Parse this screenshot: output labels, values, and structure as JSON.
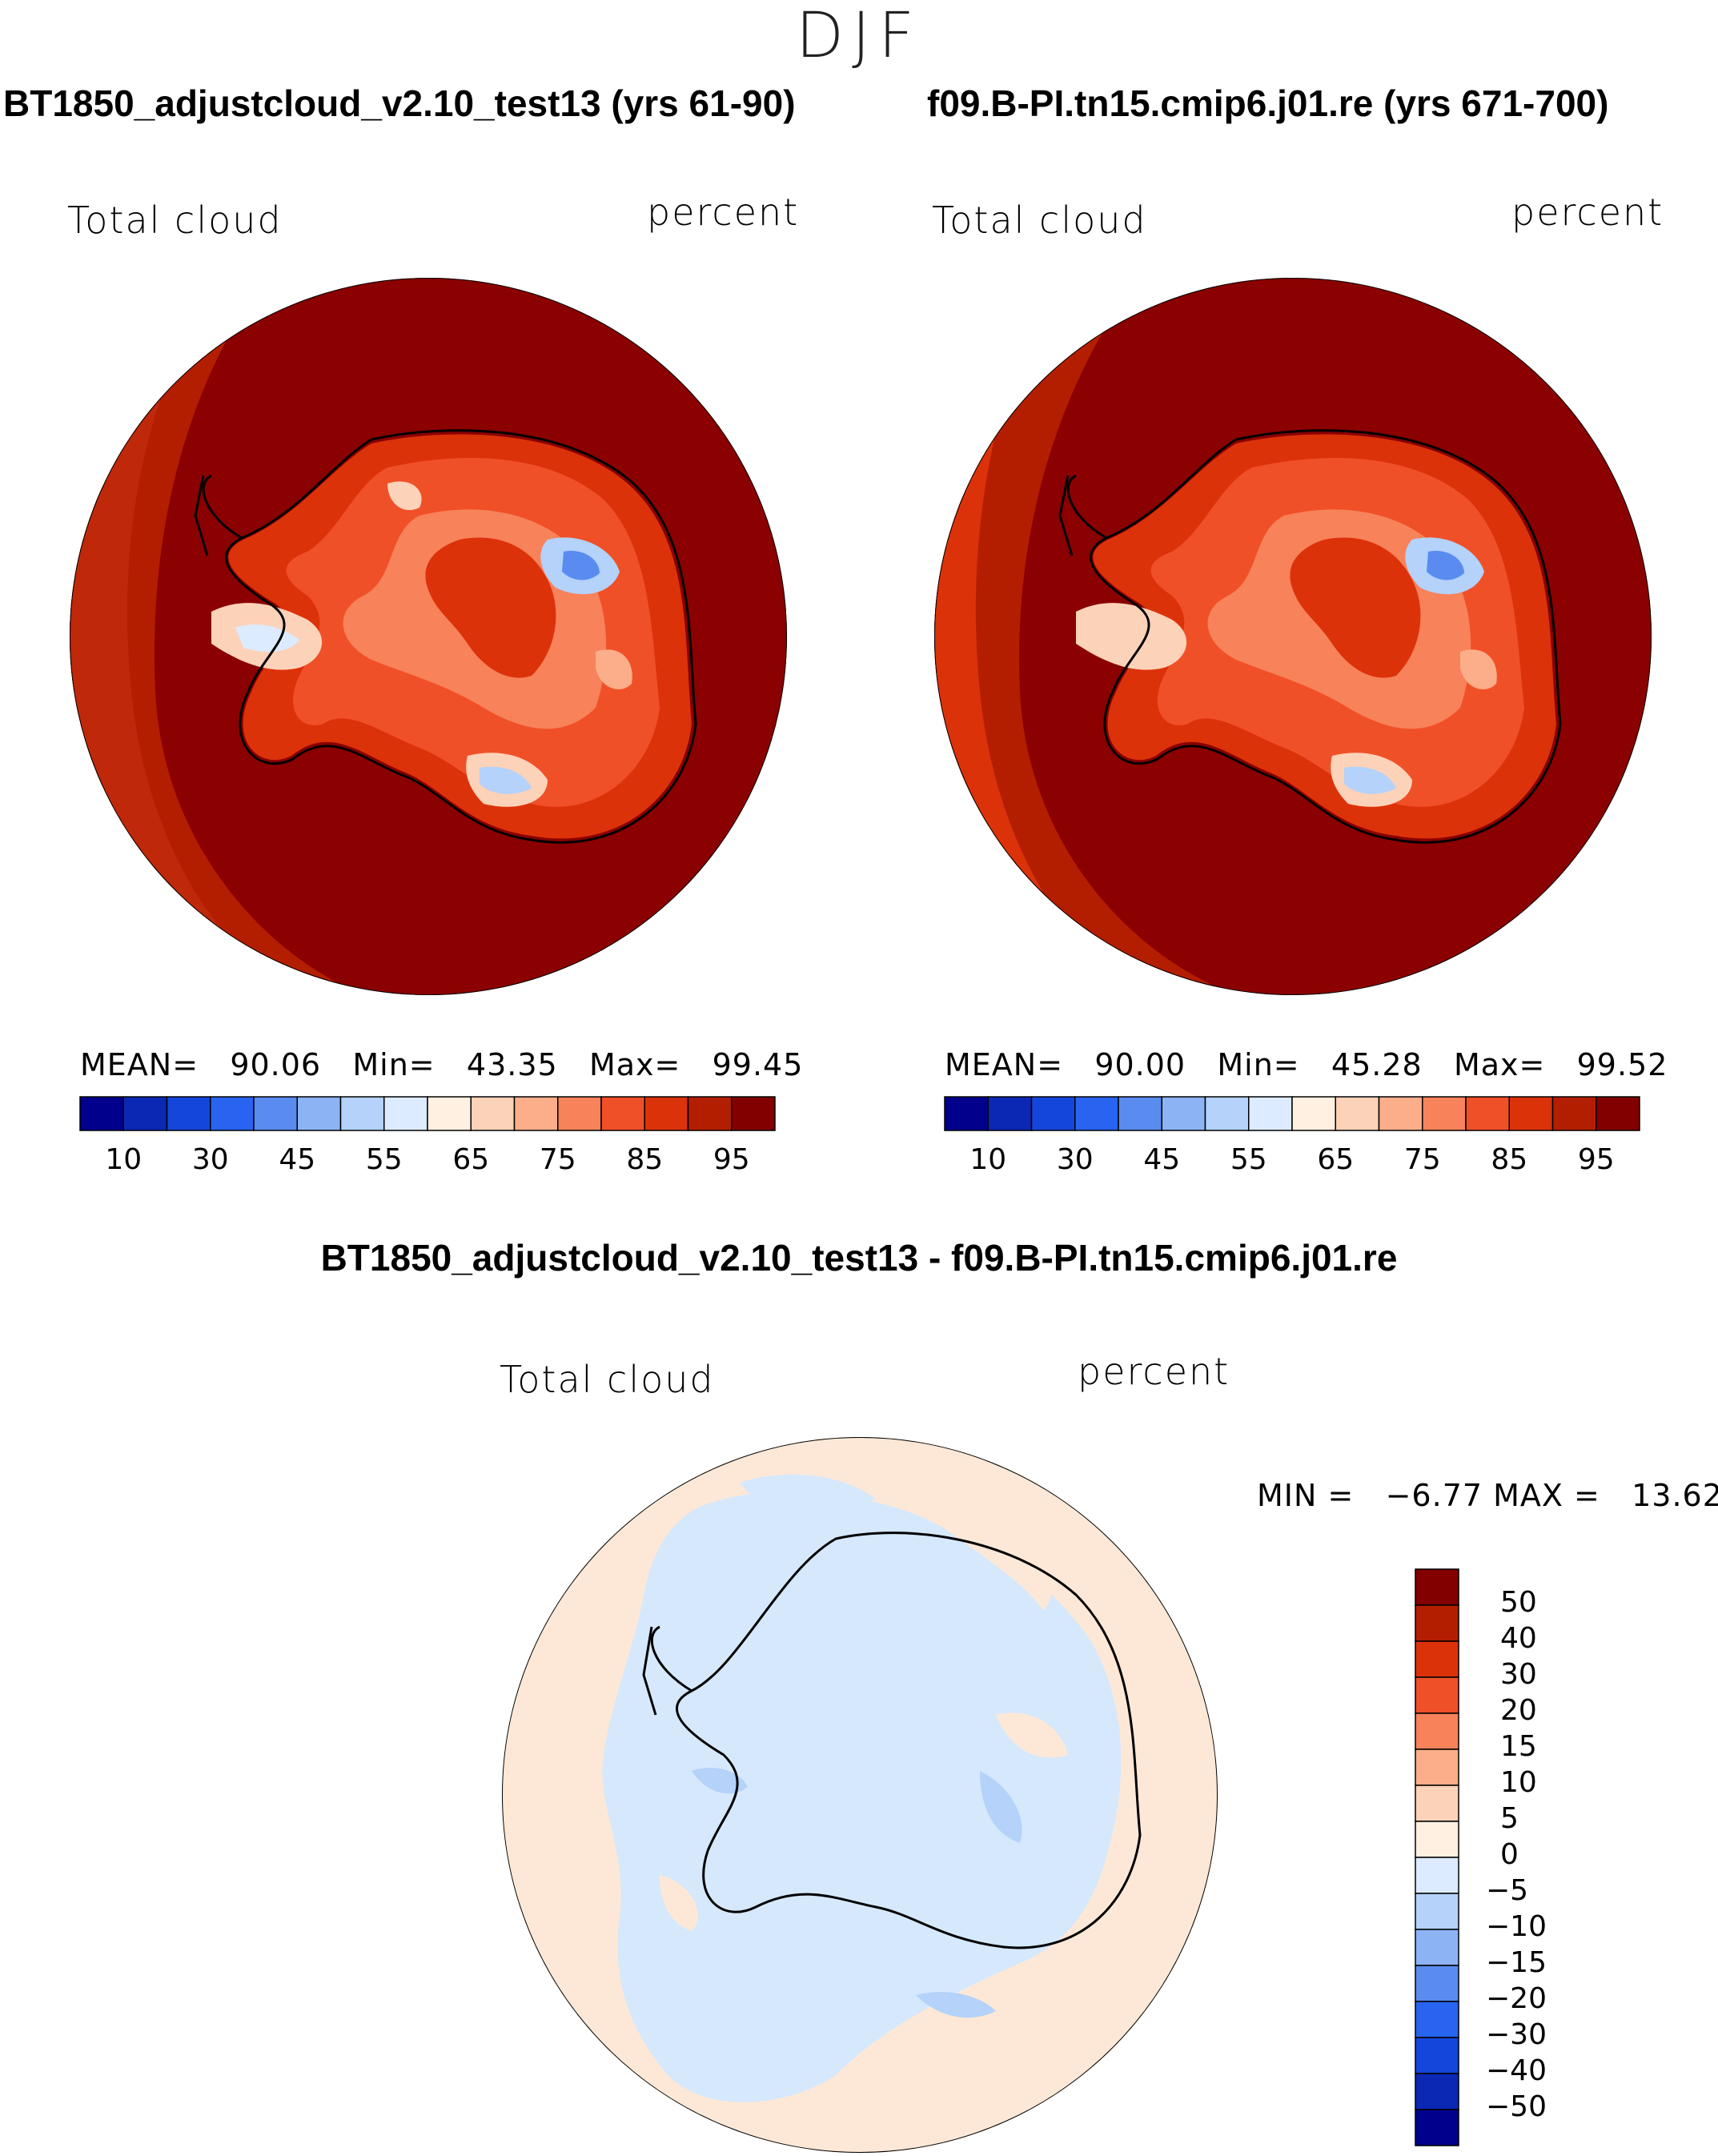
{
  "season": "DJF",
  "panels": [
    {
      "title": "BT1850_adjustcloud_v2.10_test13 (yrs 61-90)",
      "field_label": "Total cloud",
      "units_label": "percent",
      "stats": {
        "mean_label": "MEAN=",
        "mean": "90.06",
        "min_label": "Min=",
        "min": "43.35",
        "max_label": "Max=",
        "max": "99.45"
      }
    },
    {
      "title": "f09.B-PI.tn15.cmip6.j01.re (yrs 671-700)",
      "field_label": "Total cloud",
      "units_label": "percent",
      "stats": {
        "mean_label": "MEAN=",
        "mean": "90.00",
        "min_label": "Min=",
        "min": "45.28",
        "max_label": "Max=",
        "max": "99.52"
      }
    }
  ],
  "abs_colorbar": {
    "ticks": [
      "10",
      "30",
      "45",
      "55",
      "65",
      "75",
      "85",
      "95"
    ],
    "colors": [
      "#00008c",
      "#0a28b4",
      "#1446dc",
      "#2864f0",
      "#5a8cf0",
      "#8cb4f5",
      "#b4d2fa",
      "#dcebff",
      "#fff0e1",
      "#fcd2b9",
      "#fcae8a",
      "#f8825a",
      "#f05028",
      "#dc320a",
      "#b41e00",
      "#820000"
    ]
  },
  "diff_panel": {
    "title": "BT1850_adjustcloud_v2.10_test13 - f09.B-PI.tn15.cmip6.j01.re",
    "field_label": "Total cloud",
    "units_label": "percent",
    "min_label": "MIN =",
    "min": "−6.77",
    "max_label": "MAX =",
    "max": "13.62"
  },
  "diff_colorbar": {
    "ticks": [
      "50",
      "40",
      "30",
      "20",
      "15",
      "10",
      "5",
      "0",
      "−5",
      "−10",
      "−15",
      "−20",
      "−30",
      "−40",
      "−50"
    ],
    "colors": [
      "#820000",
      "#b41e00",
      "#dc320a",
      "#f05028",
      "#f8825a",
      "#fcae8a",
      "#fcd2b9",
      "#fff0e1",
      "#dcebff",
      "#b4d2fa",
      "#8cb4f5",
      "#5a8cf0",
      "#2864f0",
      "#1446dc",
      "#0a28b4",
      "#00008c"
    ]
  },
  "colors": {
    "ocean_high": "#8b0000",
    "ring": "#c0280a",
    "diff_neutral": "#fde8d7",
    "diff_neg": "#d6e8fc"
  }
}
